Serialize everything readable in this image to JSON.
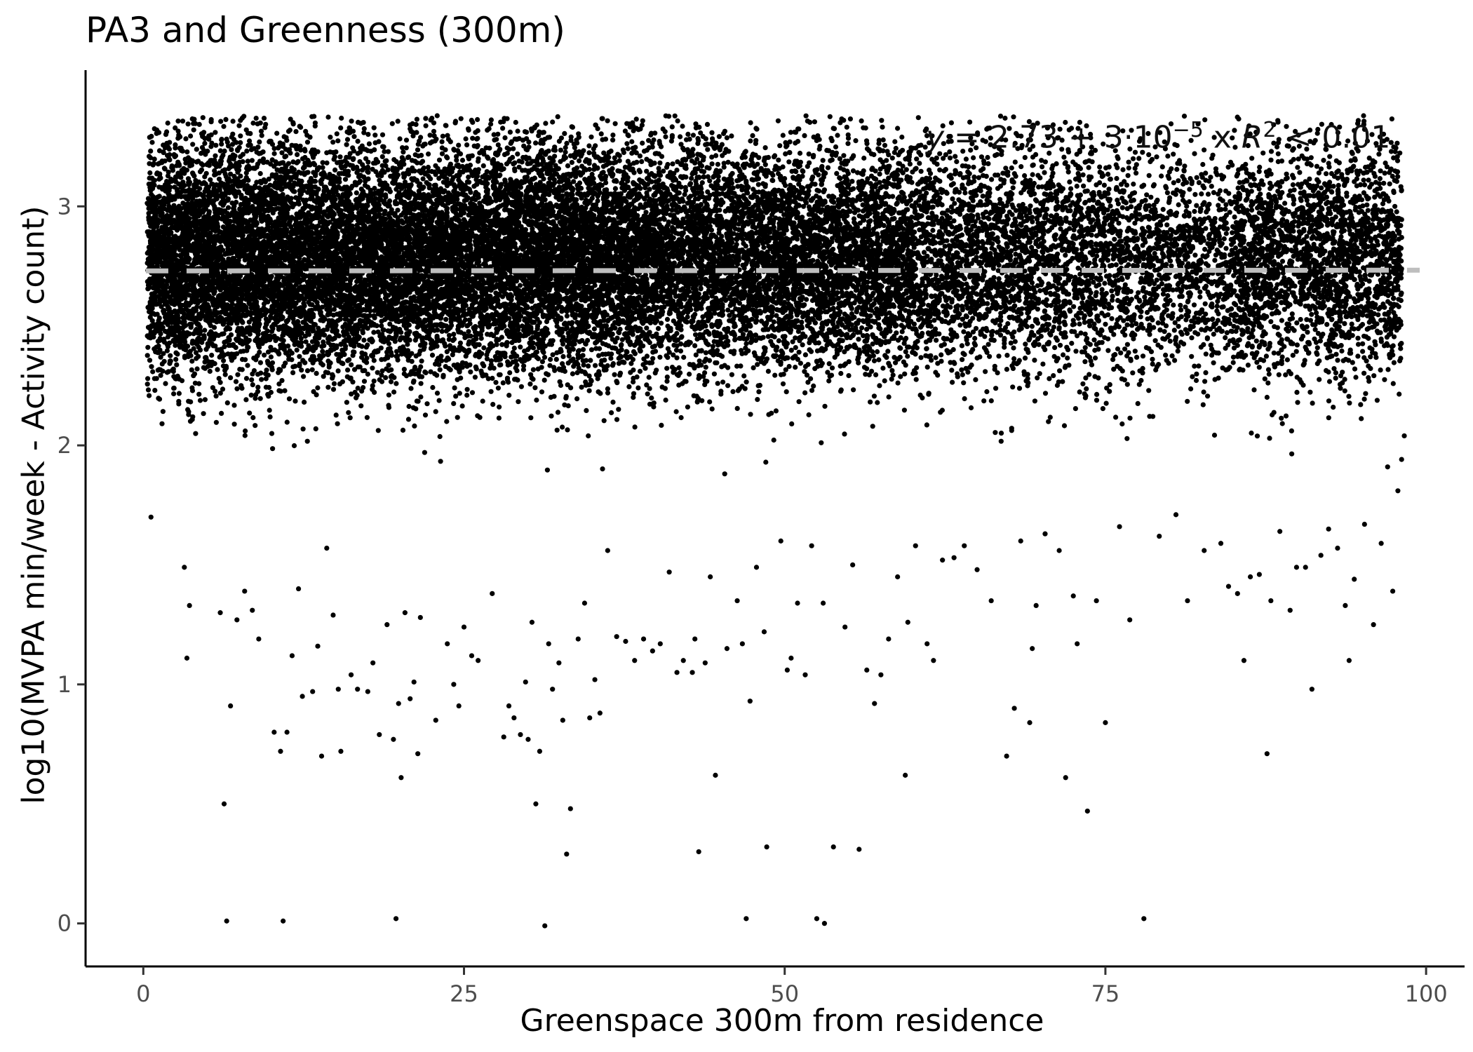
{
  "chart_data": {
    "type": "scatter",
    "title": "PA3 and Greenness (300m)",
    "xlabel": "Greenspace 300m from residence",
    "ylabel": "log10(MVPA min/week - Activity count)",
    "xlim": [
      -4.5,
      103
    ],
    "ylim": [
      -0.18,
      3.57
    ],
    "x_ticks": [
      0,
      25,
      50,
      75,
      100
    ],
    "y_ticks": [
      0,
      1,
      2,
      3
    ],
    "x_tick_labels": [
      "0",
      "25",
      "50",
      "75",
      "100"
    ],
    "y_tick_labels": [
      "0",
      "1",
      "2",
      "3"
    ],
    "grid": false,
    "point_color": "#000000",
    "fit_line": {
      "intercept": 2.73,
      "slope": 3e-05,
      "x_range": [
        0.2,
        99.5
      ],
      "color": "#bebebe",
      "style": "dashed"
    },
    "annotation": {
      "y_part": "y",
      "eq_part": " = 2.73 + 3·10",
      "exp1": "−5",
      "x_part": " x  ",
      "r_part": "R",
      "exp2": "2",
      "tail": " < 0.01"
    },
    "series": [
      {
        "points": [
          [
            0.6,
            1.7
          ],
          [
            3.2,
            1.49
          ],
          [
            3.4,
            1.11
          ],
          [
            3.6,
            1.33
          ],
          [
            6.0,
            1.3
          ],
          [
            6.3,
            0.5
          ],
          [
            6.5,
            0.01
          ],
          [
            6.8,
            0.91
          ],
          [
            7.3,
            1.27
          ],
          [
            7.9,
            1.39
          ],
          [
            8.5,
            1.31
          ],
          [
            9.0,
            1.19
          ],
          [
            10.2,
            0.8
          ],
          [
            10.7,
            0.72
          ],
          [
            10.9,
            0.01
          ],
          [
            11.2,
            0.8
          ],
          [
            11.6,
            1.12
          ],
          [
            12.1,
            1.4
          ],
          [
            12.4,
            0.95
          ],
          [
            13.2,
            0.97
          ],
          [
            13.6,
            1.16
          ],
          [
            13.9,
            0.7
          ],
          [
            14.3,
            1.57
          ],
          [
            14.8,
            1.29
          ],
          [
            15.2,
            0.98
          ],
          [
            15.4,
            0.72
          ],
          [
            16.2,
            1.04
          ],
          [
            16.7,
            0.98
          ],
          [
            17.5,
            0.97
          ],
          [
            17.9,
            1.09
          ],
          [
            18.4,
            0.79
          ],
          [
            19.0,
            1.25
          ],
          [
            19.5,
            0.77
          ],
          [
            19.7,
            0.02
          ],
          [
            19.9,
            0.92
          ],
          [
            20.1,
            0.61
          ],
          [
            20.4,
            1.3
          ],
          [
            20.8,
            0.94
          ],
          [
            21.1,
            1.01
          ],
          [
            21.4,
            0.71
          ],
          [
            21.6,
            1.28
          ],
          [
            22.8,
            0.85
          ],
          [
            23.7,
            1.17
          ],
          [
            24.2,
            1.0
          ],
          [
            24.6,
            0.91
          ],
          [
            25.0,
            1.24
          ],
          [
            25.6,
            1.12
          ],
          [
            26.1,
            1.1
          ],
          [
            27.2,
            1.38
          ],
          [
            28.1,
            0.78
          ],
          [
            28.5,
            0.91
          ],
          [
            28.9,
            0.86
          ],
          [
            29.4,
            0.79
          ],
          [
            29.8,
            1.01
          ],
          [
            30.0,
            0.77
          ],
          [
            30.3,
            1.26
          ],
          [
            30.6,
            0.5
          ],
          [
            30.9,
            0.72
          ],
          [
            31.3,
            -0.01
          ],
          [
            31.6,
            1.17
          ],
          [
            31.9,
            0.98
          ],
          [
            32.4,
            1.09
          ],
          [
            32.7,
            0.85
          ],
          [
            33.0,
            0.29
          ],
          [
            33.3,
            0.48
          ],
          [
            33.9,
            1.19
          ],
          [
            34.4,
            1.34
          ],
          [
            34.8,
            0.86
          ],
          [
            35.2,
            1.02
          ],
          [
            35.6,
            0.88
          ],
          [
            36.2,
            1.56
          ],
          [
            36.9,
            1.2
          ],
          [
            37.6,
            1.18
          ],
          [
            38.3,
            1.1
          ],
          [
            39.0,
            1.19
          ],
          [
            39.7,
            1.14
          ],
          [
            40.3,
            1.17
          ],
          [
            41.0,
            1.47
          ],
          [
            41.6,
            1.05
          ],
          [
            42.1,
            1.1
          ],
          [
            42.8,
            1.05
          ],
          [
            43.0,
            1.19
          ],
          [
            43.3,
            0.3
          ],
          [
            43.8,
            1.09
          ],
          [
            44.2,
            1.45
          ],
          [
            44.6,
            0.62
          ],
          [
            45.5,
            1.15
          ],
          [
            46.3,
            1.35
          ],
          [
            46.7,
            1.17
          ],
          [
            47.0,
            0.02
          ],
          [
            47.3,
            0.93
          ],
          [
            47.8,
            1.49
          ],
          [
            48.4,
            1.22
          ],
          [
            48.6,
            0.32
          ],
          [
            49.7,
            1.6
          ],
          [
            50.2,
            1.06
          ],
          [
            50.5,
            1.11
          ],
          [
            51.0,
            1.34
          ],
          [
            51.6,
            1.04
          ],
          [
            52.1,
            1.58
          ],
          [
            52.5,
            0.02
          ],
          [
            53.0,
            1.34
          ],
          [
            53.1,
            0.0
          ],
          [
            53.8,
            0.32
          ],
          [
            54.7,
            1.24
          ],
          [
            55.3,
            1.5
          ],
          [
            55.8,
            0.31
          ],
          [
            56.4,
            1.06
          ],
          [
            57.0,
            0.92
          ],
          [
            57.5,
            1.04
          ],
          [
            58.1,
            1.19
          ],
          [
            58.8,
            1.45
          ],
          [
            59.4,
            0.62
          ],
          [
            59.6,
            1.26
          ],
          [
            60.2,
            1.58
          ],
          [
            61.1,
            1.17
          ],
          [
            61.6,
            1.1
          ],
          [
            62.3,
            1.52
          ],
          [
            63.2,
            1.53
          ],
          [
            64.0,
            1.58
          ],
          [
            65.0,
            1.48
          ],
          [
            66.1,
            1.35
          ],
          [
            67.3,
            0.7
          ],
          [
            67.9,
            0.9
          ],
          [
            68.4,
            1.6
          ],
          [
            69.1,
            0.84
          ],
          [
            69.3,
            1.15
          ],
          [
            69.6,
            1.33
          ],
          [
            70.3,
            1.63
          ],
          [
            71.4,
            1.56
          ],
          [
            71.9,
            0.61
          ],
          [
            72.5,
            1.37
          ],
          [
            72.8,
            1.17
          ],
          [
            73.6,
            0.47
          ],
          [
            74.3,
            1.35
          ],
          [
            75.0,
            0.84
          ],
          [
            76.1,
            1.66
          ],
          [
            76.9,
            1.27
          ],
          [
            78.0,
            0.02
          ],
          [
            79.2,
            1.62
          ],
          [
            80.5,
            1.71
          ],
          [
            81.4,
            1.35
          ],
          [
            82.7,
            1.56
          ],
          [
            84.0,
            1.59
          ],
          [
            84.6,
            1.41
          ],
          [
            85.3,
            1.38
          ],
          [
            85.8,
            1.1
          ],
          [
            86.3,
            1.45
          ],
          [
            87.0,
            1.46
          ],
          [
            87.6,
            0.71
          ],
          [
            87.9,
            1.35
          ],
          [
            88.6,
            1.64
          ],
          [
            89.4,
            1.31
          ],
          [
            89.9,
            1.49
          ],
          [
            90.6,
            1.49
          ],
          [
            91.1,
            0.98
          ],
          [
            91.8,
            1.54
          ],
          [
            92.4,
            1.65
          ],
          [
            93.1,
            1.57
          ],
          [
            93.7,
            1.33
          ],
          [
            94.0,
            1.1
          ],
          [
            94.4,
            1.44
          ],
          [
            95.2,
            1.67
          ],
          [
            95.9,
            1.25
          ],
          [
            96.5,
            1.59
          ],
          [
            97.0,
            1.91
          ],
          [
            97.4,
            1.39
          ],
          [
            97.8,
            1.81
          ],
          [
            98.3,
            2.04
          ]
        ]
      }
    ]
  }
}
